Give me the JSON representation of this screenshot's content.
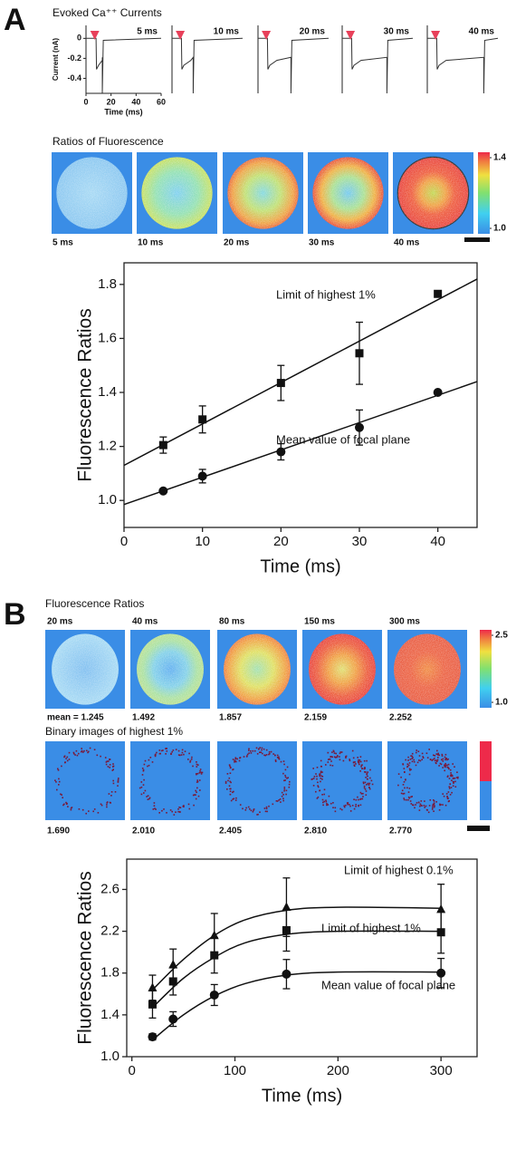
{
  "figure": {
    "panel_a": {
      "label": "A",
      "currents": {
        "title": "Evoked Ca⁺⁺ Currents",
        "xlabel": "Time (ms)",
        "ylabel": "Current (nA)",
        "xlim": [
          0,
          60
        ],
        "ylim": [
          -0.55,
          0.13
        ],
        "xticks": [
          0,
          20,
          40,
          60
        ],
        "yticks": [
          0,
          -0.2,
          -0.4
        ],
        "traces": [
          {
            "label": "5 ms",
            "duration": 5
          },
          {
            "label": "10 ms",
            "duration": 10
          },
          {
            "label": "20 ms",
            "duration": 20
          },
          {
            "label": "30 ms",
            "duration": 30
          },
          {
            "label": "40 ms",
            "duration": 40
          }
        ]
      },
      "ratios": {
        "title": "Ratios of Fluorescence",
        "images": [
          "5 ms",
          "10 ms",
          "20 ms",
          "30 ms",
          "40 ms"
        ],
        "colorbar": {
          "lim": [
            1.0,
            1.4
          ],
          "ticks": [
            1.4,
            {
              "value": 1.0,
              "label": "1.0"
            }
          ]
        }
      }
    },
    "panel_b": {
      "label": "B",
      "ratios": {
        "title": "Fluorescence Ratios",
        "images": [
          "20 ms",
          "40 ms",
          "80 ms",
          "150 ms",
          "300 ms"
        ],
        "values": [
          1.245,
          1.492,
          1.857,
          2.159,
          2.252
        ],
        "value_labels": [
          "mean = 1.245",
          "1.492",
          "1.857",
          "2.159",
          "2.252"
        ],
        "colorbar": {
          "lim": [
            1.0,
            2.5
          ],
          "ticks": [
            2.5,
            {
              "value": 1.0,
              "label": "1.0"
            }
          ]
        }
      },
      "binary": {
        "title": "Binary images of highest 1%",
        "values": [
          1.69,
          2.01,
          2.405,
          2.81,
          2.77
        ],
        "value_labels": [
          "1.690",
          "2.010",
          "2.405",
          "2.810",
          "2.770"
        ]
      }
    }
  },
  "chart_data": [
    {
      "type": "scatter",
      "xlabel": "Time (ms)",
      "ylabel": "Fluorescence Ratios",
      "xlim": [
        0,
        45
      ],
      "ylim": [
        0.9,
        1.88
      ],
      "xticks": [
        0,
        10,
        20,
        30,
        40
      ],
      "yticks": [
        {
          "value": 1.0,
          "label": "1.0"
        },
        1.2,
        1.4,
        1.6,
        1.8
      ],
      "x": [
        5,
        10,
        20,
        30,
        40
      ],
      "series": [
        {
          "marker": "square",
          "color": "#111111",
          "values": [
            1.205,
            1.3,
            1.435,
            1.545,
            1.765
          ],
          "errors": [
            0.03,
            0.05,
            0.065,
            0.115,
            null
          ],
          "fit": {
            "x": [
              0,
              45
            ],
            "values": [
              1.13,
              1.82
            ]
          }
        },
        {
          "marker": "circle",
          "color": "#111111",
          "values": [
            1.035,
            1.09,
            1.18,
            1.27,
            1.4
          ],
          "errors": [
            null,
            0.025,
            0.03,
            0.065,
            null
          ],
          "fit": {
            "x": [
              0,
              45
            ],
            "values": [
              0.985,
              1.44
            ]
          }
        }
      ],
      "annotations": [
        "Limit of highest 1%",
        "Mean value of focal plane"
      ]
    },
    {
      "type": "scatter",
      "xlabel": "Time (ms)",
      "ylabel": "Fluorescence Ratios",
      "xlim": [
        -5,
        335
      ],
      "ylim": [
        1.0,
        2.89
      ],
      "xticks": [
        0,
        100,
        200,
        300
      ],
      "yticks": [
        {
          "value": 1.0,
          "label": "1.0"
        },
        1.4,
        1.8,
        2.2,
        2.6
      ],
      "x": [
        20,
        40,
        80,
        150,
        300
      ],
      "series": [
        {
          "marker": "triangle",
          "color": "#111111",
          "values": [
            1.66,
            1.88,
            2.16,
            2.43,
            2.41
          ],
          "errors": [
            0.12,
            0.15,
            0.21,
            0.28,
            0.24
          ],
          "fit": {
            "x": [
              20,
              50,
              80,
              110,
              150,
              200,
              300
            ],
            "values": [
              1.64,
              1.93,
              2.16,
              2.31,
              2.4,
              2.43,
              2.42
            ]
          }
        },
        {
          "marker": "square",
          "color": "#111111",
          "values": [
            1.5,
            1.72,
            1.97,
            2.21,
            2.19
          ],
          "errors": [
            0.13,
            0.13,
            0.17,
            0.2,
            0.2
          ],
          "fit": {
            "x": [
              20,
              50,
              80,
              110,
              150,
              200,
              300
            ],
            "values": [
              1.47,
              1.75,
              1.95,
              2.09,
              2.17,
              2.2,
              2.2
            ]
          }
        },
        {
          "marker": "circle",
          "color": "#111111",
          "values": [
            1.19,
            1.36,
            1.59,
            1.79,
            1.8
          ],
          "errors": [
            0.03,
            0.07,
            0.1,
            0.14,
            0.14
          ],
          "fit": {
            "x": [
              20,
              50,
              80,
              110,
              150,
              200,
              300
            ],
            "values": [
              1.16,
              1.4,
              1.58,
              1.7,
              1.78,
              1.81,
              1.81
            ]
          }
        }
      ],
      "annotations": [
        "Limit of highest 0.1%",
        "Limit of highest 1%",
        "Mean value of focal plane"
      ]
    }
  ]
}
